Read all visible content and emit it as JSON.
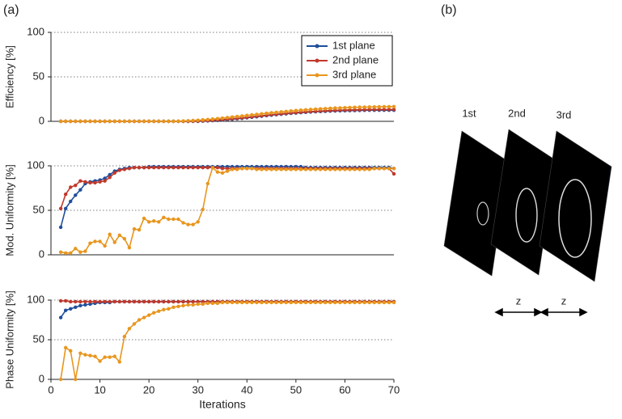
{
  "panel_labels": [
    "(a)",
    "(b)"
  ],
  "diagram": {
    "plane_labels": [
      "1st",
      "2nd",
      "3rd"
    ],
    "spacing_labels": [
      "z",
      "z"
    ]
  },
  "chart_data": [
    {
      "type": "line",
      "y_label": "Efficiency [%]",
      "xlim": [
        0,
        70
      ],
      "ylim": [
        0,
        100
      ],
      "yticks": [
        0,
        50,
        100
      ],
      "grid": true,
      "legend": "upper right",
      "x": [
        2,
        3,
        4,
        5,
        6,
        7,
        8,
        9,
        10,
        11,
        12,
        13,
        14,
        15,
        16,
        17,
        18,
        19,
        20,
        21,
        22,
        23,
        24,
        25,
        26,
        27,
        28,
        29,
        30,
        31,
        32,
        33,
        34,
        35,
        36,
        37,
        38,
        39,
        40,
        41,
        42,
        43,
        44,
        45,
        46,
        47,
        48,
        49,
        50,
        51,
        52,
        53,
        54,
        55,
        56,
        57,
        58,
        59,
        60,
        61,
        62,
        63,
        64,
        65,
        66,
        67,
        68,
        69,
        70
      ],
      "series": [
        {
          "name": "1st plane",
          "color": "#1f4e9c",
          "values": [
            0,
            0,
            0,
            0,
            0,
            0,
            0,
            0,
            0,
            0,
            0,
            0,
            0,
            0,
            0,
            0,
            0,
            0,
            0,
            0,
            0,
            0,
            0,
            0,
            0,
            0,
            0,
            0,
            0,
            0.3,
            0.5,
            0.8,
            1.1,
            1.5,
            1.9,
            2.4,
            2.9,
            3.4,
            4.0,
            4.6,
            5.2,
            5.8,
            6.4,
            7.0,
            7.5,
            8.0,
            8.5,
            9.0,
            9.4,
            9.8,
            10.2,
            10.5,
            10.8,
            11.1,
            11.3,
            11.5,
            11.7,
            11.9,
            12.0,
            12.1,
            12.2,
            12.3,
            12.4,
            12.5,
            12.5,
            12.6,
            12.6,
            12.6,
            12.6
          ]
        },
        {
          "name": "2nd plane",
          "color": "#c0392b",
          "values": [
            0,
            0,
            0,
            0,
            0,
            0,
            0,
            0,
            0,
            0,
            0,
            0,
            0,
            0,
            0,
            0,
            0,
            0,
            0,
            0,
            0,
            0,
            0,
            0,
            0,
            0,
            0,
            0.2,
            0.4,
            0.6,
            0.9,
            1.2,
            1.6,
            2.0,
            2.4,
            2.9,
            3.4,
            3.9,
            4.5,
            5.1,
            5.7,
            6.3,
            6.9,
            7.5,
            8.0,
            8.5,
            9.0,
            9.5,
            9.9,
            10.3,
            10.7,
            11.0,
            11.3,
            11.6,
            11.9,
            12.1,
            12.3,
            12.5,
            12.7,
            12.8,
            12.9,
            13.0,
            13.1,
            13.2,
            13.2,
            13.3,
            13.3,
            13.3,
            13.3
          ]
        },
        {
          "name": "3rd plane",
          "color": "#e8961e",
          "values": [
            0,
            0,
            0,
            0,
            0,
            0,
            0,
            0,
            0,
            0,
            0,
            0,
            0,
            0,
            0,
            0,
            0,
            0,
            0,
            0,
            0,
            0,
            0,
            0,
            0.2,
            0.4,
            0.6,
            0.9,
            1.2,
            1.6,
            2.0,
            2.5,
            3.0,
            3.6,
            4.2,
            4.8,
            5.4,
            6.0,
            6.6,
            7.2,
            7.8,
            8.4,
            9.0,
            9.6,
            10.1,
            10.6,
            11.1,
            11.6,
            12.1,
            12.5,
            12.9,
            13.3,
            13.7,
            14.0,
            14.3,
            14.6,
            14.9,
            15.1,
            15.3,
            15.5,
            15.7,
            15.9,
            16.0,
            16.1,
            16.2,
            16.3,
            16.4,
            16.4,
            16.5
          ]
        }
      ]
    },
    {
      "type": "line",
      "y_label": "Mod. Uniformity [%]",
      "xlim": [
        0,
        70
      ],
      "ylim": [
        0,
        100
      ],
      "yticks": [
        0,
        50,
        100
      ],
      "grid": true,
      "x": [
        2,
        3,
        4,
        5,
        6,
        7,
        8,
        9,
        10,
        11,
        12,
        13,
        14,
        15,
        16,
        17,
        18,
        19,
        20,
        21,
        22,
        23,
        24,
        25,
        26,
        27,
        28,
        29,
        30,
        31,
        32,
        33,
        34,
        35,
        36,
        37,
        38,
        39,
        40,
        41,
        42,
        43,
        44,
        45,
        46,
        47,
        48,
        49,
        50,
        51,
        52,
        53,
        54,
        55,
        56,
        57,
        58,
        59,
        60,
        61,
        62,
        63,
        64,
        65,
        66,
        67,
        68,
        69,
        70
      ],
      "series": [
        {
          "color": "#1f4e9c",
          "values": [
            31,
            52,
            60,
            67,
            73,
            80,
            82,
            83,
            84,
            86,
            90,
            94,
            96,
            97,
            98,
            98,
            98,
            98,
            99,
            99,
            99,
            99,
            99,
            99,
            99,
            99,
            99,
            99,
            99,
            99,
            99,
            99,
            99,
            99,
            99,
            99,
            99,
            99,
            99,
            99,
            99,
            99,
            99,
            99,
            99,
            99,
            99,
            99,
            99,
            99,
            98,
            98,
            98,
            98,
            98,
            98,
            98,
            98,
            98,
            98,
            98,
            98,
            98,
            98,
            98,
            98,
            98,
            98,
            97
          ]
        },
        {
          "color": "#c0392b",
          "values": [
            52,
            68,
            76,
            78,
            83,
            82,
            81,
            81,
            82,
            83,
            87,
            92,
            95,
            96,
            97,
            98,
            98,
            98,
            98,
            98,
            98,
            98,
            98,
            98,
            98,
            98,
            98,
            98,
            98,
            98,
            98,
            98,
            98,
            97,
            97,
            97,
            97,
            97,
            97,
            97,
            97,
            97,
            97,
            97,
            97,
            97,
            97,
            97,
            97,
            97,
            97,
            97,
            97,
            97,
            97,
            97,
            97,
            97,
            97,
            97,
            97,
            97,
            97,
            97,
            97,
            97,
            97,
            97,
            91
          ]
        },
        {
          "color": "#e8961e",
          "values": [
            3,
            2,
            2,
            7,
            3,
            4,
            13,
            15,
            15,
            10,
            23,
            14,
            22,
            18,
            8,
            29,
            28,
            41,
            37,
            38,
            37,
            42,
            40,
            40,
            40,
            36,
            34,
            34,
            37,
            51,
            80,
            98,
            93,
            92,
            94,
            96,
            96,
            97,
            97,
            97,
            96,
            96,
            96,
            96,
            96,
            96,
            96,
            96,
            96,
            96,
            96,
            96,
            96,
            96,
            96,
            96,
            96,
            96,
            96,
            96,
            96,
            96,
            96,
            96,
            97,
            97,
            97,
            97,
            97
          ]
        }
      ]
    },
    {
      "type": "line",
      "y_label": "Phase Uniformity [%]",
      "x_label": "Iterations",
      "xlim": [
        0,
        70
      ],
      "xticks": [
        0,
        10,
        20,
        30,
        40,
        50,
        60,
        70
      ],
      "ylim": [
        0,
        100
      ],
      "yticks": [
        0,
        50,
        100
      ],
      "grid": true,
      "x": [
        2,
        3,
        4,
        5,
        6,
        7,
        8,
        9,
        10,
        11,
        12,
        13,
        14,
        15,
        16,
        17,
        18,
        19,
        20,
        21,
        22,
        23,
        24,
        25,
        26,
        27,
        28,
        29,
        30,
        31,
        32,
        33,
        34,
        35,
        36,
        37,
        38,
        39,
        40,
        41,
        42,
        43,
        44,
        45,
        46,
        47,
        48,
        49,
        50,
        51,
        52,
        53,
        54,
        55,
        56,
        57,
        58,
        59,
        60,
        61,
        62,
        63,
        64,
        65,
        66,
        67,
        68,
        69,
        70
      ],
      "series": [
        {
          "color": "#1f4e9c",
          "values": [
            78,
            87,
            89,
            91,
            93,
            94,
            95,
            96,
            97,
            97,
            97,
            98,
            98,
            98,
            98,
            98,
            98,
            98,
            98,
            98,
            98,
            98,
            98,
            98,
            98,
            98,
            98,
            98,
            98,
            98,
            98,
            98,
            98,
            98,
            98,
            98,
            98,
            98,
            98,
            98,
            98,
            98,
            98,
            98,
            98,
            98,
            98,
            98,
            98,
            98,
            98,
            98,
            98,
            98,
            98,
            98,
            98,
            98,
            98,
            98,
            98,
            98,
            98,
            98,
            98,
            98,
            98,
            98,
            98
          ]
        },
        {
          "color": "#c0392b",
          "values": [
            99,
            99,
            98,
            98,
            98,
            98,
            98,
            98,
            98,
            98,
            98,
            98,
            98,
            98,
            98,
            98,
            98,
            98,
            98,
            98,
            98,
            98,
            98,
            98,
            98,
            98,
            98,
            98,
            98,
            98,
            98,
            98,
            98,
            98,
            98,
            98,
            98,
            98,
            98,
            98,
            98,
            98,
            98,
            98,
            98,
            98,
            98,
            98,
            98,
            98,
            98,
            98,
            98,
            98,
            98,
            98,
            98,
            98,
            98,
            98,
            98,
            98,
            98,
            98,
            98,
            98,
            98,
            98,
            98
          ]
        },
        {
          "color": "#e8961e",
          "values": [
            0,
            40,
            36,
            0,
            33,
            31,
            30,
            29,
            23,
            28,
            28,
            29,
            22,
            54,
            64,
            70,
            75,
            78,
            81,
            84,
            86,
            88,
            89,
            91,
            92,
            93,
            94,
            94,
            95,
            95,
            96,
            96,
            96,
            97,
            97,
            97,
            97,
            97,
            97,
            97,
            97,
            97,
            97,
            97,
            97,
            97,
            97,
            97,
            97,
            97,
            97,
            97,
            97,
            97,
            97,
            97,
            97,
            97,
            97,
            97,
            97,
            97,
            97,
            97,
            97,
            97,
            97,
            97,
            97
          ]
        }
      ]
    }
  ]
}
